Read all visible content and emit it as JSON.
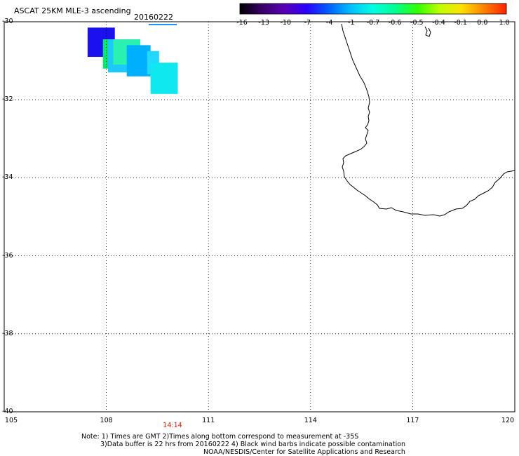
{
  "header": {
    "title": "ASCAT 25KM MLE-3 ascending",
    "date": "20160222"
  },
  "colorbar": {
    "labels": [
      "-16",
      "-13",
      "-10",
      "-7",
      "-4",
      "-1",
      "-0.7",
      "-0.6",
      "-0.5",
      "-0.4",
      "-0.1",
      "0.0",
      "1.0"
    ],
    "colors": [
      "#000000",
      "#3a0068",
      "#5a00b4",
      "#2a00ff",
      "#0060ff",
      "#00c0ff",
      "#00ffe0",
      "#00ff90",
      "#30ff00",
      "#c0ff00",
      "#ffe000",
      "#ff8000",
      "#ff2000"
    ]
  },
  "axes": {
    "lat_labels": [
      "-30",
      "-32",
      "-34",
      "-36",
      "-38",
      "-40"
    ],
    "lon_labels": [
      "105",
      "108",
      "111",
      "114",
      "117",
      "120"
    ],
    "lon_range": [
      105,
      120
    ],
    "lat_range": [
      -40,
      -30
    ],
    "grid": true
  },
  "time_label": "14:14",
  "notes": {
    "line1": "Note: 1) Times are GMT 2)Times along bottom correspond to measurement at -35S",
    "line2": "3)Data buffer is 22 hrs from 20160222 4) Black wind barbs indicate possible contamination",
    "line3": "NOAA/NESDIS/Center for Satellite Applications and Research"
  },
  "data_cells": [
    {
      "lon0": 107.45,
      "lon1": 108.25,
      "lat0": -30.15,
      "lat1": -30.9,
      "color": "#1a10f0"
    },
    {
      "lon0": 107.9,
      "lon1": 108.7,
      "lat0": -30.45,
      "lat1": -31.2,
      "color": "#00e66e"
    },
    {
      "lon0": 108.05,
      "lon1": 108.9,
      "lat0": -30.45,
      "lat1": -31.3,
      "color": "#1ec8ff"
    },
    {
      "lon0": 108.2,
      "lon1": 109.0,
      "lat0": -30.45,
      "lat1": -31.1,
      "color": "#2af0b0"
    },
    {
      "lon0": 108.6,
      "lon1": 109.3,
      "lat0": -30.6,
      "lat1": -31.4,
      "color": "#00b0ff"
    },
    {
      "lon0": 109.2,
      "lon1": 109.55,
      "lat0": -30.75,
      "lat1": -31.35,
      "color": "#22d8ff"
    },
    {
      "lon0": 109.3,
      "lon1": 110.1,
      "lat0": -31.05,
      "lat1": -31.85,
      "color": "#10e8f0"
    }
  ]
}
